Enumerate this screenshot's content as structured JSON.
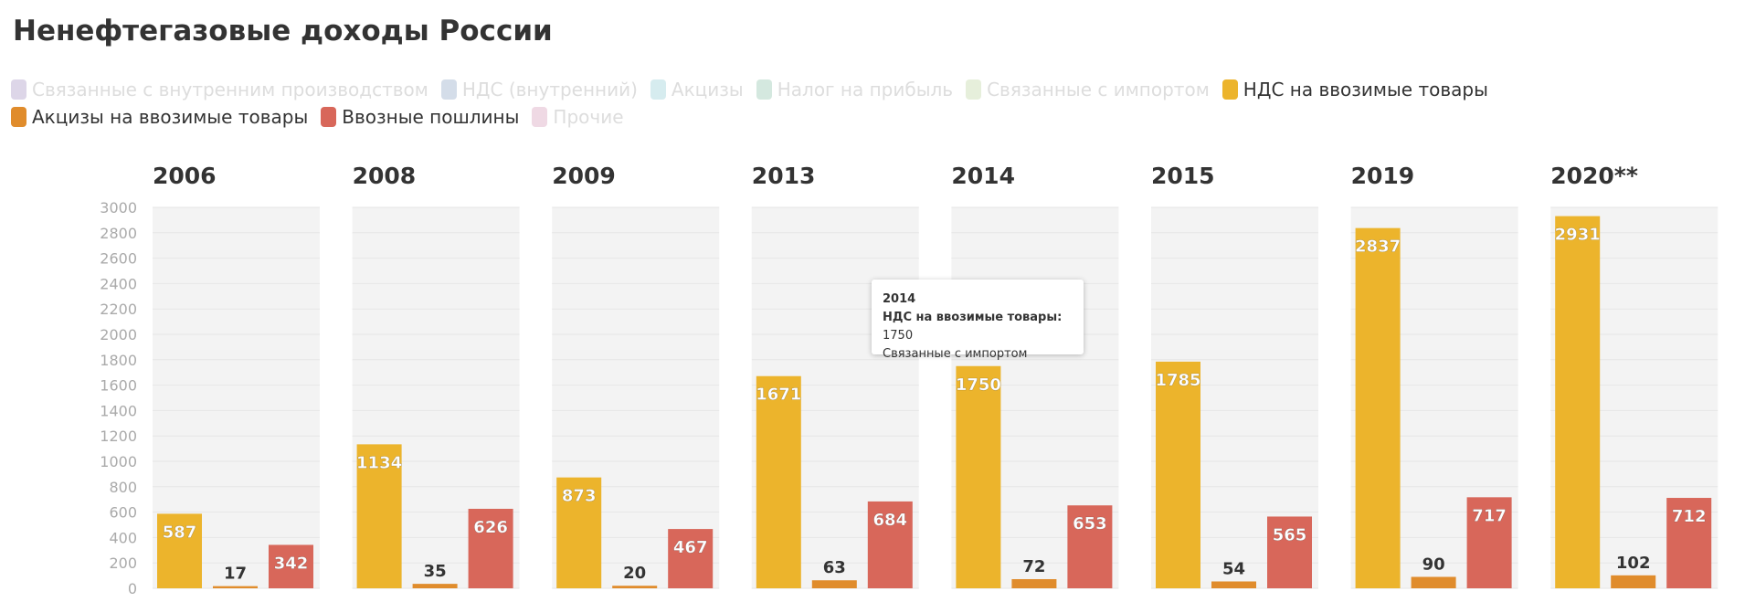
{
  "chart_data": {
    "type": "bar",
    "title": "Ненефтегазовые доходы России",
    "panels": [
      "2006",
      "2008",
      "2009",
      "2013",
      "2014",
      "2015",
      "2019",
      "2020**"
    ],
    "hidden_series": [
      {
        "name": "Связанные с внутренним производством",
        "color": "#ddd6e8"
      },
      {
        "name": "НДС (внутренний)",
        "color": "#d4dde9"
      },
      {
        "name": "Акцизы",
        "color": "#d6ecef"
      },
      {
        "name": "Налог на прибыль",
        "color": "#d4e8df"
      },
      {
        "name": "Связанные с импортом",
        "color": "#e6efdb"
      }
    ],
    "series": [
      {
        "name": "НДС на ввозимые товары",
        "color": "#ecb42c",
        "values": [
          587,
          1134,
          873,
          1671,
          1750,
          1785,
          2837,
          2931
        ]
      },
      {
        "name": "Акцизы на ввозимые товары",
        "color": "#e08c2c",
        "values": [
          17,
          35,
          20,
          63,
          72,
          54,
          90,
          102
        ]
      },
      {
        "name": "Ввозные пошлины",
        "color": "#d8675a",
        "values": [
          342,
          626,
          467,
          684,
          653,
          565,
          717,
          712
        ]
      }
    ],
    "extra_legend": [
      {
        "name": "Прочие",
        "color": "#efd9e4"
      }
    ],
    "ylim": [
      0,
      3000
    ],
    "yticks": [
      0,
      200,
      400,
      600,
      800,
      1000,
      1200,
      1400,
      1600,
      1800,
      2000,
      2200,
      2400,
      2600,
      2800,
      3000
    ],
    "grid": true,
    "tooltip": {
      "title": "2014",
      "label": "НДС на ввозимые товары:",
      "value": 1750,
      "note": "Связанные с импортом"
    }
  }
}
